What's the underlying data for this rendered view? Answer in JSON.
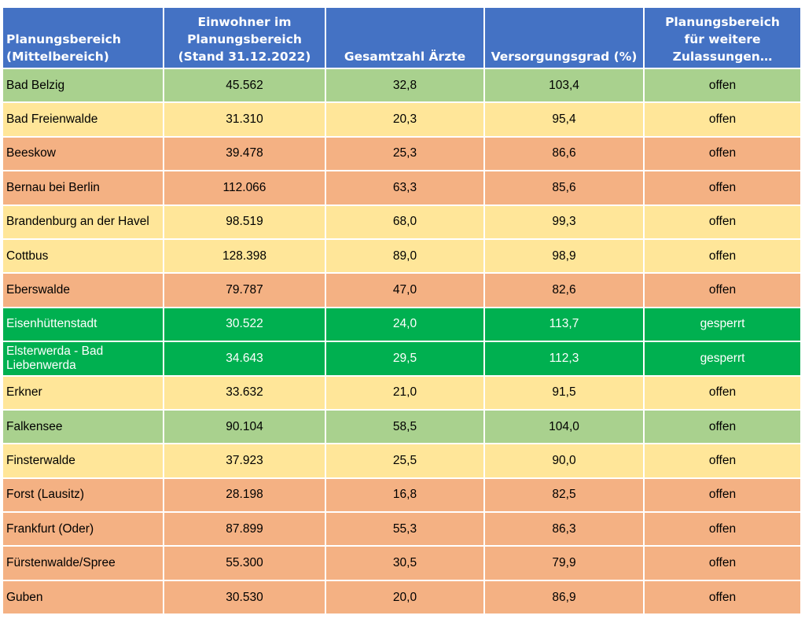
{
  "chart_data": {
    "type": "table",
    "columns": [
      "Planungsbereich\n(Mittelbereich)",
      "Einwohner im\nPlanungsbereich\n(Stand 31.12.2022)",
      "Gesamtzahl Ärzte",
      "Versorgungsgrad (%)",
      "Planungsbereich\nfür weitere\nZulassungen…"
    ],
    "rows": [
      {
        "name": "Bad Belzig",
        "einwohner": "45.562",
        "aerzte": "32,8",
        "grad": "103,4",
        "status": "offen",
        "color": "#a9d18e"
      },
      {
        "name": "Bad Freienwalde",
        "einwohner": "31.310",
        "aerzte": "20,3",
        "grad": "95,4",
        "status": "offen",
        "color": "#ffe699"
      },
      {
        "name": "Beeskow",
        "einwohner": "39.478",
        "aerzte": "25,3",
        "grad": "86,6",
        "status": "offen",
        "color": "#f4b183"
      },
      {
        "name": "Bernau bei Berlin",
        "einwohner": "112.066",
        "aerzte": "63,3",
        "grad": "85,6",
        "status": "offen",
        "color": "#f4b183"
      },
      {
        "name": "Brandenburg an der Havel",
        "einwohner": "98.519",
        "aerzte": "68,0",
        "grad": "99,3",
        "status": "offen",
        "color": "#ffe699"
      },
      {
        "name": "Cottbus",
        "einwohner": "128.398",
        "aerzte": "89,0",
        "grad": "98,9",
        "status": "offen",
        "color": "#ffe699"
      },
      {
        "name": "Eberswalde",
        "einwohner": "79.787",
        "aerzte": "47,0",
        "grad": "82,6",
        "status": "offen",
        "color": "#f4b183"
      },
      {
        "name": "Eisenhüttenstadt",
        "einwohner": "30.522",
        "aerzte": "24,0",
        "grad": "113,7",
        "status": "gesperrt",
        "color": "#00b050"
      },
      {
        "name": "Elsterwerda - Bad Liebenwerda",
        "einwohner": "34.643",
        "aerzte": "29,5",
        "grad": "112,3",
        "status": "gesperrt",
        "color": "#00b050"
      },
      {
        "name": "Erkner",
        "einwohner": "33.632",
        "aerzte": "21,0",
        "grad": "91,5",
        "status": "offen",
        "color": "#ffe699"
      },
      {
        "name": "Falkensee",
        "einwohner": "90.104",
        "aerzte": "58,5",
        "grad": "104,0",
        "status": "offen",
        "color": "#a9d18e"
      },
      {
        "name": "Finsterwalde",
        "einwohner": "37.923",
        "aerzte": "25,5",
        "grad": "90,0",
        "status": "offen",
        "color": "#ffe699"
      },
      {
        "name": "Forst (Lausitz)",
        "einwohner": "28.198",
        "aerzte": "16,8",
        "grad": "82,5",
        "status": "offen",
        "color": "#f4b183"
      },
      {
        "name": "Frankfurt (Oder)",
        "einwohner": "87.899",
        "aerzte": "55,3",
        "grad": "86,3",
        "status": "offen",
        "color": "#f4b183"
      },
      {
        "name": "Fürstenwalde/Spree",
        "einwohner": "55.300",
        "aerzte": "30,5",
        "grad": "79,9",
        "status": "offen",
        "color": "#f4b183"
      },
      {
        "name": "Guben",
        "einwohner": "30.530",
        "aerzte": "20,0",
        "grad": "86,9",
        "status": "offen",
        "color": "#f4b183"
      }
    ]
  }
}
